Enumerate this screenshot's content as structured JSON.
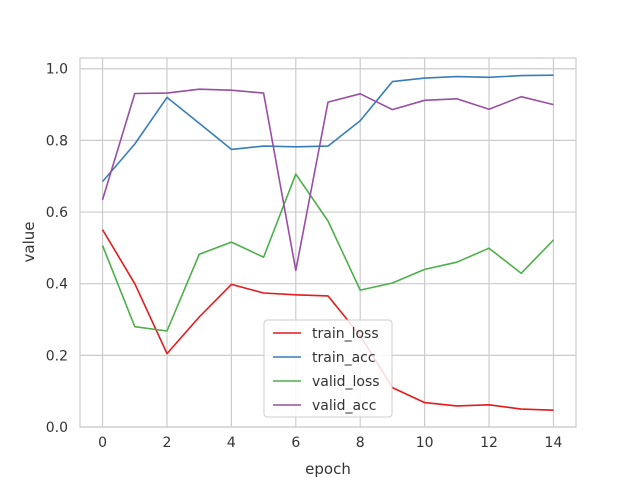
{
  "chart_data": {
    "type": "line",
    "title": "",
    "xlabel": "epoch",
    "ylabel": "value",
    "xlim": [
      -0.7,
      14.7
    ],
    "ylim": [
      0.0,
      1.03
    ],
    "x_ticks": [
      "0",
      "2",
      "4",
      "6",
      "8",
      "10",
      "12",
      "14"
    ],
    "y_ticks": [
      "0.0",
      "0.2",
      "0.4",
      "0.6",
      "0.8",
      "1.0"
    ],
    "grid": true,
    "legend_position": "bottom-center",
    "x": [
      0,
      1,
      2,
      3,
      4,
      5,
      6,
      7,
      8,
      9,
      10,
      11,
      12,
      13,
      14
    ],
    "series": [
      {
        "name": "train_loss",
        "color": "#e41a1c",
        "values": [
          0.551,
          0.4,
          0.205,
          0.307,
          0.398,
          0.374,
          0.369,
          0.366,
          0.255,
          0.11,
          0.068,
          0.059,
          0.062,
          0.05,
          0.047
        ]
      },
      {
        "name": "train_acc",
        "color": "#377eb8",
        "values": [
          0.685,
          0.79,
          0.92,
          0.848,
          0.775,
          0.784,
          0.782,
          0.784,
          0.855,
          0.964,
          0.974,
          0.978,
          0.976,
          0.981,
          0.982
        ]
      },
      {
        "name": "valid_loss",
        "color": "#4daf4a",
        "values": [
          0.507,
          0.28,
          0.268,
          0.482,
          0.516,
          0.474,
          0.706,
          0.575,
          0.382,
          0.402,
          0.44,
          0.46,
          0.499,
          0.429,
          0.522
        ]
      },
      {
        "name": "valid_acc",
        "color": "#984ea3",
        "values": [
          0.634,
          0.931,
          0.932,
          0.943,
          0.94,
          0.932,
          0.437,
          0.907,
          0.93,
          0.886,
          0.912,
          0.916,
          0.887,
          0.922,
          0.9
        ]
      }
    ]
  }
}
